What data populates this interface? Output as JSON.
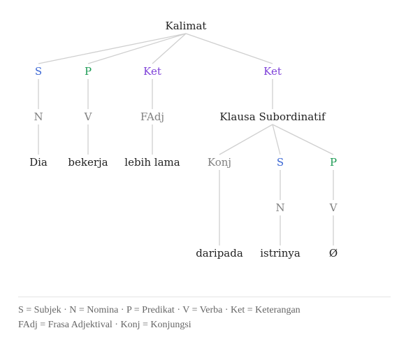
{
  "colors": {
    "edge": "#cfcfcf",
    "word": "#1f1f1f",
    "category": "#808080",
    "subject": "#3a66d4",
    "predicate": "#1a9a52",
    "adverbial": "#7d3fd8"
  },
  "tree": {
    "nodes": [
      {
        "id": "kalimat",
        "label": "Kalimat",
        "role": "word"
      },
      {
        "id": "s1",
        "label": "S",
        "role": "subject"
      },
      {
        "id": "p1",
        "label": "P",
        "role": "predicate"
      },
      {
        "id": "ket1",
        "label": "Ket",
        "role": "adverbial"
      },
      {
        "id": "ket2",
        "label": "Ket",
        "role": "adverbial"
      },
      {
        "id": "n1",
        "label": "N",
        "role": "category"
      },
      {
        "id": "v1",
        "label": "V",
        "role": "category"
      },
      {
        "id": "fadj",
        "label": "FAdj",
        "role": "category"
      },
      {
        "id": "klausa",
        "label": "Klausa Subordinatif",
        "role": "word"
      },
      {
        "id": "dia",
        "label": "Dia",
        "role": "word"
      },
      {
        "id": "bekerja",
        "label": "bekerja",
        "role": "word"
      },
      {
        "id": "lebih",
        "label": "lebih lama",
        "role": "word"
      },
      {
        "id": "konj",
        "label": "Konj",
        "role": "category"
      },
      {
        "id": "s2",
        "label": "S",
        "role": "subject"
      },
      {
        "id": "p2",
        "label": "P",
        "role": "predicate"
      },
      {
        "id": "n2",
        "label": "N",
        "role": "category"
      },
      {
        "id": "v2",
        "label": "V",
        "role": "category"
      },
      {
        "id": "daripada",
        "label": "daripada",
        "role": "word"
      },
      {
        "id": "istrinya",
        "label": "istrinya",
        "role": "word"
      },
      {
        "id": "empty",
        "label": "Ø",
        "role": "word"
      }
    ],
    "edges": [
      [
        "kalimat",
        "s1"
      ],
      [
        "kalimat",
        "p1"
      ],
      [
        "kalimat",
        "ket1"
      ],
      [
        "kalimat",
        "ket2"
      ],
      [
        "s1",
        "n1"
      ],
      [
        "p1",
        "v1"
      ],
      [
        "ket1",
        "fadj"
      ],
      [
        "ket2",
        "klausa"
      ],
      [
        "n1",
        "dia"
      ],
      [
        "v1",
        "bekerja"
      ],
      [
        "fadj",
        "lebih"
      ],
      [
        "klausa",
        "konj"
      ],
      [
        "klausa",
        "s2"
      ],
      [
        "klausa",
        "p2"
      ],
      [
        "s2",
        "n2"
      ],
      [
        "p2",
        "v2"
      ],
      [
        "konj",
        "daripada"
      ],
      [
        "n2",
        "istrinya"
      ],
      [
        "v2",
        "empty"
      ]
    ]
  },
  "legend": {
    "line1": "S = Subjek · N = Nomina · P = Predikat · V = Verba · Ket = Keterangan",
    "line2": "FAdj = Frasa Adjektival · Konj = Konjungsi"
  }
}
